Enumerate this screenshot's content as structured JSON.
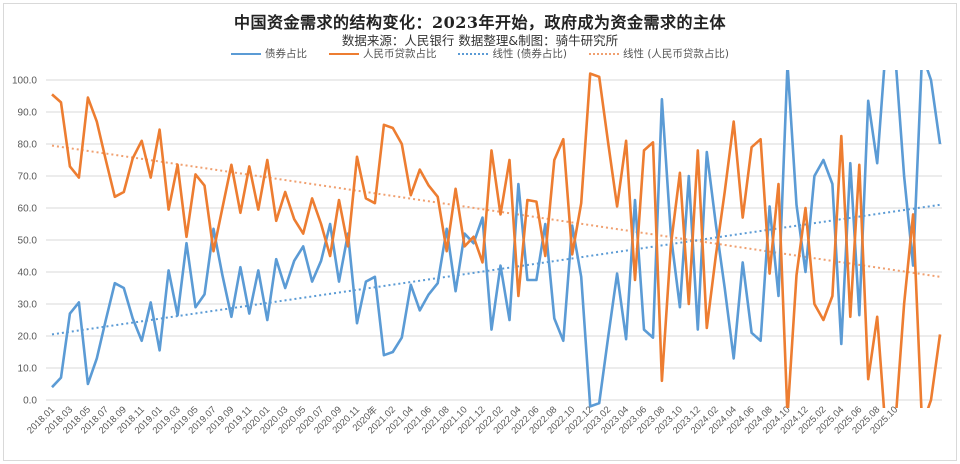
{
  "header": {
    "title": "中国资金需求的结构变化：2023年开始，政府成为资金需求的主体",
    "subtitle": "数据来源：人民银行  数据整理&制图：骑牛研究所"
  },
  "legend": [
    {
      "label": "债券占比",
      "style": "solid-blue"
    },
    {
      "label": "人民币贷款占比",
      "style": "solid-orange"
    },
    {
      "label": "线性 (债券占比)",
      "style": "dot-blue"
    },
    {
      "label": "线性 (人民币贷款占比)",
      "style": "dot-orange"
    }
  ],
  "colors": {
    "bond": "#5b9bd5",
    "loan": "#ed7d31",
    "bond_trend": "#5b9bd5",
    "loan_trend": "#f0a070",
    "grid": "#d9d9d9"
  },
  "chart_data": {
    "type": "line",
    "title": "中国资金需求的结构变化：2023年开始，政府成为资金需求的主体",
    "subtitle": "数据来源：人民银行  数据整理&制图：骑牛研究所",
    "xlabel": "",
    "ylabel": "",
    "ylim": [
      0,
      100
    ],
    "yticks": [
      "0.0",
      "10.0",
      "20.0",
      "30.0",
      "40.0",
      "50.0",
      "60.0",
      "70.0",
      "80.0",
      "90.0",
      "100.0"
    ],
    "grid": true,
    "legend_position": "top",
    "x_tick_labels": [
      "2018.01",
      "2018.03",
      "2018.05",
      "2018.07",
      "2018.09",
      "2018.11",
      "2019.01",
      "2019.03",
      "2019.05",
      "2019.07",
      "2019.09",
      "2019.11",
      "2020.01",
      "2020.03",
      "2020.05",
      "2020.07",
      "2020.09",
      "2020.11",
      "2020年",
      "2021.02",
      "2021.04",
      "2021.06",
      "2021.08",
      "2021.10",
      "2021.12",
      "2022.02",
      "2022.04",
      "2022.06",
      "2022.08",
      "2022.10",
      "2022.12",
      "2023.02",
      "2023.04",
      "2023.06",
      "2023.08",
      "2023.10",
      "2023.12",
      "2024.02",
      "2024.04",
      "2024.06",
      "2024.08",
      "2024.10",
      "2024.12",
      "2025.02",
      "2025.04",
      "2025.06",
      "2025.08",
      "2025.10"
    ],
    "series": [
      {
        "name": "债券占比",
        "values": [
          4,
          7,
          27,
          30.5,
          5,
          13,
          25,
          36.5,
          35,
          25.5,
          18.5,
          30.5,
          15.5,
          40.5,
          26.5,
          49,
          29,
          33,
          53.5,
          39,
          26,
          41.5,
          27,
          40.5,
          25,
          44,
          35,
          43.5,
          48,
          37,
          43.5,
          55,
          37,
          52,
          24,
          37,
          38.5,
          14,
          15,
          19.5,
          36,
          28,
          33,
          36.5,
          53.5,
          34,
          52,
          49,
          57,
          22,
          42,
          25,
          67.5,
          37.5,
          37.5,
          55,
          25.5,
          18.5,
          54.5,
          38.5,
          -2,
          -1,
          19.5,
          39.5,
          19,
          62.5,
          22,
          19.5,
          94,
          51.5,
          29,
          70,
          22,
          77.5,
          55,
          35,
          13,
          43,
          21,
          18.5,
          60.5,
          32.5,
          105,
          61,
          40,
          70,
          75,
          67.5,
          17.5,
          74,
          26.5,
          93.5,
          74,
          112,
          108,
          70,
          42,
          108,
          100,
          80
        ]
      },
      {
        "name": "人民币贷款占比",
        "values": [
          95.5,
          93,
          73,
          69.5,
          94.5,
          87,
          75,
          63.5,
          65,
          75.5,
          81,
          69.5,
          84.5,
          59.5,
          73.5,
          51,
          70.5,
          67,
          46.5,
          60,
          73.5,
          58.5,
          73,
          59.5,
          75,
          56,
          65,
          56.5,
          52,
          63,
          55,
          45,
          62.5,
          48,
          76,
          63,
          61.5,
          86,
          85,
          80,
          64,
          72,
          67,
          63.5,
          46.5,
          66,
          48,
          51,
          43,
          78,
          58,
          75,
          32.5,
          62.5,
          62,
          45,
          75,
          81.5,
          45.5,
          61.5,
          102,
          101,
          80.5,
          60.5,
          81,
          37.5,
          78,
          80.5,
          6,
          48.5,
          71,
          30,
          78,
          22.5,
          45,
          65,
          87,
          57,
          79,
          81.5,
          39.5,
          67.5,
          -5,
          39,
          60,
          30,
          25,
          32.5,
          82.5,
          26,
          73.5,
          6.5,
          26,
          -12,
          -8,
          30,
          58,
          -8,
          0,
          20.5
        ]
      },
      {
        "name": "线性 (债券占比)",
        "style": "dotted",
        "values_endpoints": [
          20.5,
          61
        ]
      },
      {
        "name": "线性 (人民币贷款占比)",
        "style": "dotted",
        "values_endpoints": [
          79.5,
          38.5
        ]
      }
    ]
  }
}
